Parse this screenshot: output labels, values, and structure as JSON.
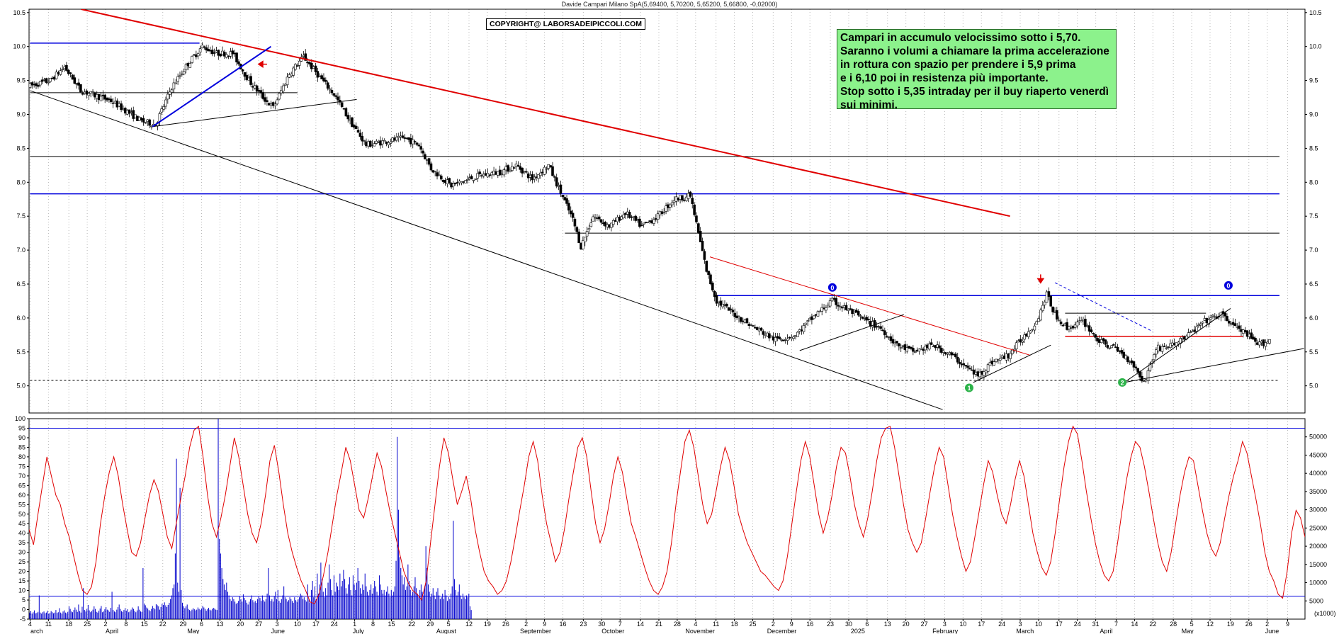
{
  "header": {
    "title": "Davide Campari Milano SpA(5,69400, 5,70200, 5,65200, 5,66800, -0,02000)"
  },
  "copyright": "COPYRIGHT@ LABORSADEIPICCOLI.COM",
  "annotation": {
    "lines": [
      "Campari in accumulo velocissimo sotto i 5,70.",
      "Saranno i volumi a chiamare la prima accelerazione",
      "in rottura con spazio per prendere i 5,9 prima",
      "e i 6,10 poi in resistenza più importante.",
      "Stop sotto i 5,35 intraday per il buy riaperto venerdì",
      "sui minimi."
    ]
  },
  "colors": {
    "candle": "#000000",
    "trend_red": "#e00000",
    "blue": "#0000dd",
    "oscillator": "#e00000",
    "volume": "#0000cc",
    "grid": "#b8b8b8",
    "annotation_bg": "#8cf28c",
    "marker_green": "#2db34a"
  },
  "chart_data": [
    {
      "type": "candlestick",
      "title": "Davide Campari Milano SpA(5,69400, 5,70200, 5,65200, 5,66800, -0,02000)",
      "ylim": [
        4.6,
        10.55
      ],
      "y_ticks": [
        "10.5",
        "10.0",
        "9.5",
        "9.0",
        "8.5",
        "8.0",
        "7.5",
        "7.0",
        "6.5",
        "6.0",
        "5.5",
        "5.0"
      ],
      "grid": true,
      "price_path": [
        [
          0,
          9.42
        ],
        [
          10,
          9.5
        ],
        [
          17,
          9.7
        ],
        [
          25,
          9.35
        ],
        [
          40,
          9.2
        ],
        [
          55,
          8.9
        ],
        [
          62,
          8.85
        ],
        [
          70,
          9.4
        ],
        [
          78,
          9.75
        ],
        [
          85,
          10.0
        ],
        [
          92,
          9.9
        ],
        [
          100,
          9.9
        ],
        [
          108,
          9.5
        ],
        [
          115,
          9.25
        ],
        [
          120,
          9.1
        ],
        [
          128,
          9.6
        ],
        [
          135,
          9.85
        ],
        [
          143,
          9.55
        ],
        [
          150,
          9.3
        ],
        [
          158,
          8.9
        ],
        [
          166,
          8.55
        ],
        [
          175,
          8.6
        ],
        [
          185,
          8.65
        ],
        [
          192,
          8.55
        ],
        [
          198,
          8.2
        ],
        [
          208,
          7.95
        ],
        [
          222,
          8.1
        ],
        [
          232,
          8.15
        ],
        [
          240,
          8.25
        ],
        [
          248,
          8.05
        ],
        [
          256,
          8.25
        ],
        [
          262,
          7.85
        ],
        [
          268,
          7.45
        ],
        [
          272,
          7.05
        ],
        [
          278,
          7.5
        ],
        [
          286,
          7.35
        ],
        [
          294,
          7.55
        ],
        [
          302,
          7.35
        ],
        [
          310,
          7.5
        ],
        [
          318,
          7.75
        ],
        [
          326,
          7.8
        ],
        [
          334,
          6.7
        ],
        [
          339,
          6.25
        ],
        [
          348,
          6.05
        ],
        [
          358,
          5.85
        ],
        [
          368,
          5.68
        ],
        [
          378,
          5.75
        ],
        [
          388,
          6.05
        ],
        [
          396,
          6.25
        ],
        [
          405,
          6.1
        ],
        [
          413,
          5.95
        ],
        [
          420,
          5.85
        ],
        [
          428,
          5.6
        ],
        [
          436,
          5.5
        ],
        [
          446,
          5.6
        ],
        [
          455,
          5.45
        ],
        [
          462,
          5.28
        ],
        [
          468,
          5.15
        ],
        [
          475,
          5.35
        ],
        [
          483,
          5.45
        ],
        [
          490,
          5.7
        ],
        [
          497,
          5.95
        ],
        [
          502,
          6.35
        ],
        [
          506,
          6.05
        ],
        [
          512,
          5.85
        ],
        [
          520,
          5.95
        ],
        [
          528,
          5.65
        ],
        [
          536,
          5.55
        ],
        [
          544,
          5.35
        ],
        [
          550,
          5.05
        ],
        [
          556,
          5.55
        ],
        [
          564,
          5.6
        ],
        [
          572,
          5.75
        ],
        [
          580,
          5.95
        ],
        [
          588,
          6.05
        ],
        [
          594,
          5.9
        ],
        [
          602,
          5.72
        ],
        [
          606,
          5.6
        ],
        [
          612,
          5.67
        ]
      ],
      "horizontal_lines": [
        {
          "y": 10.05,
          "x_from": 0,
          "x_to": 83,
          "color": "blue"
        },
        {
          "y": 9.32,
          "x_from": 0,
          "x_to": 131,
          "color": "black"
        },
        {
          "y": 8.38,
          "x_from": 0,
          "x_to": 612,
          "color": "black"
        },
        {
          "y": 7.83,
          "x_from": 0,
          "x_to": 612,
          "color": "blue"
        },
        {
          "y": 7.25,
          "x_from": 262,
          "x_to": 612,
          "color": "black"
        },
        {
          "y": 6.33,
          "x_from": 336,
          "x_to": 612,
          "color": "blue"
        },
        {
          "y": 6.07,
          "x_from": 507,
          "x_to": 576,
          "color": "black"
        },
        {
          "y": 5.73,
          "x_from": 507,
          "x_to": 594,
          "color": "red"
        },
        {
          "y": 5.08,
          "x_from": 0,
          "x_to": 612,
          "color": "black",
          "dashed": true
        }
      ],
      "trend_lines": [
        {
          "from": [
            25,
            10.55
          ],
          "to": [
            480,
            7.5
          ],
          "color": "red",
          "width": 2
        },
        {
          "from": [
            0,
            9.35
          ],
          "to": [
            447,
            4.65
          ],
          "color": "black"
        },
        {
          "from": [
            60,
            8.82
          ],
          "to": [
            160,
            9.22
          ],
          "color": "black"
        },
        {
          "from": [
            60,
            8.82
          ],
          "to": [
            118,
            10.0
          ],
          "color": "blue",
          "width": 2
        },
        {
          "from": [
            333,
            6.9
          ],
          "to": [
            490,
            5.45
          ],
          "color": "red"
        },
        {
          "from": [
            377,
            5.52
          ],
          "to": [
            428,
            6.05
          ],
          "color": "black"
        },
        {
          "from": [
            462,
            5.05
          ],
          "to": [
            500,
            5.6
          ],
          "color": "black"
        },
        {
          "from": [
            536,
            5.05
          ],
          "to": [
            588,
            6.14
          ],
          "color": "black"
        },
        {
          "from": [
            536,
            5.05
          ],
          "to": [
            624,
            5.55
          ],
          "color": "black"
        },
        {
          "from": [
            502,
            6.52
          ],
          "to": [
            550,
            5.8
          ],
          "color": "blue",
          "dashed": true
        }
      ],
      "markers": [
        {
          "label": "1",
          "x": 460,
          "y": 4.97,
          "color": "green"
        },
        {
          "label": "2",
          "x": 535,
          "y": 5.05,
          "color": "green"
        },
        {
          "label": "0",
          "x": 393,
          "y": 6.45,
          "color": "blue"
        },
        {
          "label": "0",
          "x": 587,
          "y": 6.48,
          "color": "blue"
        }
      ],
      "arrows": [
        {
          "x": 114,
          "y": 9.74,
          "direction": "left",
          "color": "red"
        },
        {
          "x": 495,
          "y": 6.58,
          "direction": "down",
          "color": "red"
        }
      ]
    },
    {
      "type": "line",
      "name": "oscillator",
      "ylim": [
        -5,
        100
      ],
      "y_ticks": [
        "100",
        "95",
        "90",
        "85",
        "80",
        "75",
        "70",
        "65",
        "60",
        "55",
        "50",
        "45",
        "40",
        "35",
        "30",
        "25",
        "20",
        "15",
        "10",
        "5",
        "0",
        "-5"
      ],
      "reference_lines": [
        95,
        7
      ],
      "values": [
        42,
        34,
        50,
        65,
        80,
        70,
        60,
        55,
        45,
        38,
        28,
        18,
        10,
        8,
        12,
        25,
        45,
        60,
        72,
        80,
        70,
        55,
        42,
        30,
        28,
        35,
        48,
        60,
        68,
        62,
        50,
        38,
        32,
        45,
        58,
        70,
        85,
        94,
        96,
        80,
        60,
        45,
        38,
        48,
        60,
        75,
        90,
        80,
        65,
        50,
        40,
        35,
        45,
        60,
        78,
        86,
        72,
        55,
        40,
        30,
        22,
        15,
        10,
        4,
        3,
        8,
        18,
        30,
        45,
        60,
        72,
        85,
        78,
        65,
        52,
        48,
        58,
        70,
        82,
        75,
        62,
        50,
        40,
        30,
        20,
        14,
        10,
        8,
        5,
        15,
        35,
        55,
        75,
        90,
        82,
        68,
        55,
        62,
        70,
        58,
        42,
        30,
        20,
        15,
        12,
        8,
        10,
        15,
        25,
        38,
        52,
        65,
        80,
        88,
        78,
        60,
        45,
        35,
        25,
        30,
        42,
        58,
        72,
        85,
        90,
        80,
        62,
        45,
        35,
        42,
        55,
        70,
        80,
        72,
        58,
        45,
        38,
        30,
        22,
        15,
        10,
        8,
        12,
        20,
        35,
        55,
        72,
        88,
        94,
        85,
        70,
        55,
        45,
        50,
        62,
        75,
        85,
        78,
        65,
        50,
        42,
        35,
        30,
        25,
        20,
        18,
        15,
        12,
        10,
        15,
        28,
        45,
        62,
        78,
        88,
        80,
        65,
        50,
        40,
        48,
        60,
        75,
        85,
        82,
        70,
        55,
        45,
        38,
        48,
        62,
        78,
        90,
        95,
        96,
        85,
        70,
        55,
        42,
        35,
        30,
        35,
        48,
        62,
        75,
        85,
        80,
        65,
        50,
        38,
        28,
        20,
        25,
        38,
        52,
        66,
        78,
        72,
        60,
        50,
        45,
        55,
        68,
        78,
        70,
        55,
        40,
        30,
        22,
        18,
        25,
        40,
        58,
        75,
        88,
        96,
        92,
        78,
        62,
        48,
        35,
        25,
        18,
        15,
        20,
        35,
        52,
        68,
        80,
        88,
        85,
        75,
        62,
        48,
        35,
        25,
        20,
        30,
        45,
        60,
        72,
        80,
        78,
        65,
        52,
        40,
        32,
        28,
        35,
        48,
        60,
        70,
        78,
        88,
        82,
        70,
        58,
        45,
        30,
        20,
        15,
        8,
        6,
        20,
        40,
        52,
        48,
        38
      ]
    },
    {
      "type": "bar",
      "name": "volume",
      "ylim": [
        0,
        55000
      ],
      "y_ticks": [
        "50000",
        "45000",
        "40000",
        "35000",
        "30000",
        "25000",
        "20000",
        "15000",
        "10000",
        "5000"
      ],
      "reference_line": 6500,
      "values": [
        1800,
        2200,
        1500,
        1900,
        2400,
        1600,
        1700,
        2000,
        6500,
        1800,
        1500,
        1900,
        2100,
        1600,
        1800,
        2300,
        1500,
        1700,
        2200,
        1900,
        1600,
        1800,
        2500,
        1700,
        1900,
        3000,
        1800,
        1500,
        2100,
        2400,
        1800,
        1600,
        2000,
        3500,
        2800,
        2100,
        1900,
        2500,
        3200,
        2600,
        2000,
        4000,
        2200,
        1800,
        3400,
        8500,
        2500,
        2100,
        2800,
        3900,
        2400,
        1900,
        2200,
        2600,
        3500,
        2800,
        2000,
        1800,
        2300,
        2900,
        3600,
        1900,
        2100,
        2700,
        3300,
        2600,
        2400,
        2000,
        3100,
        7500,
        2500,
        2100,
        1900,
        2600,
        3300,
        4000,
        2800,
        2200,
        2000,
        2500,
        3000,
        2300,
        2700,
        1900,
        2100,
        2600,
        3200,
        2800,
        2300,
        1900,
        2400,
        3500,
        2600,
        2100,
        2000,
        14000,
        4200,
        3800,
        3200,
        2900,
        2500,
        2200,
        2800,
        3600,
        3100,
        2700,
        4100,
        3800,
        3500,
        2600,
        3300,
        4200,
        3900,
        4600,
        3800,
        3300,
        3900,
        4500,
        5500,
        6500,
        8500,
        9500,
        18000,
        44000,
        10000,
        7500,
        36000,
        8000,
        4500,
        3500,
        3000,
        3500,
        4000,
        2800,
        2500,
        2200,
        2600,
        3000,
        2700,
        2400,
        2600,
        3200,
        2800,
        2500,
        2900,
        3600,
        3200,
        2800,
        2300,
        2700,
        3100,
        2600,
        2400,
        2800,
        3100,
        2900,
        2600,
        2500,
        55000,
        22000,
        18000,
        14000,
        11000,
        9500,
        8000,
        10000,
        7500,
        6500,
        5500,
        5000,
        6000,
        5500,
        4800,
        4200,
        4500,
        5000,
        6200,
        5500,
        4800,
        6800,
        5800,
        5200,
        4500,
        4000,
        4800,
        5500,
        6500,
        5200,
        4600,
        5000,
        4500,
        5500,
        6200,
        5800,
        5000,
        6500,
        5200,
        4800,
        5500,
        7000,
        14000,
        6500,
        5000,
        5500,
        4800,
        6200,
        7500,
        5500,
        8000,
        5000,
        4500,
        5500,
        6500,
        9000,
        6000,
        5500,
        4800,
        5200,
        6000,
        5500,
        5000,
        4500,
        6000,
        5200,
        4800,
        5500,
        6000,
        7000,
        6500,
        5500,
        6000,
        5200,
        4800,
        9500,
        5500,
        4500,
        8000,
        10500,
        6000,
        9000,
        5500,
        12500,
        7000,
        9500,
        15500,
        11000,
        7500,
        6000,
        8500,
        6500,
        10000,
        15000,
        11000,
        8000,
        6500,
        12000,
        7500,
        10000,
        9000,
        8000,
        12500,
        9000,
        10500,
        13500,
        11000,
        8500,
        7000,
        9500,
        11500,
        8000,
        6500,
        12000,
        9500,
        8000,
        10000,
        14000,
        10500,
        8500,
        7000,
        9500,
        8000,
        12500,
        9000,
        7500,
        6500,
        8000,
        9500,
        7000,
        8500,
        10500,
        9000,
        7500,
        6500,
        12000,
        9500,
        8000,
        7000,
        8000,
        6500,
        7500,
        9000,
        7000,
        6000,
        8000,
        6500,
        7500,
        9000,
        16000,
        50000,
        30000,
        17000,
        14000,
        12000,
        9500,
        11500,
        8000,
        9000,
        15000,
        10500,
        8000,
        6500,
        7500,
        9000,
        11500,
        8500,
        7000,
        6000,
        8000,
        9500,
        7500,
        6500,
        9000,
        20000,
        14000,
        9500,
        7500,
        6000,
        7000,
        8500,
        6500,
        5500,
        7500,
        8500,
        6500,
        5500,
        6000,
        7000,
        5500,
        8000,
        6500,
        5000,
        6000,
        5500,
        7000,
        9000,
        27000,
        11000,
        8000,
        6500,
        7500,
        9500,
        6500,
        5500,
        7000,
        6000,
        5500,
        6500,
        6000,
        7000,
        3500,
        2500
      ]
    }
  ],
  "x_axis": {
    "upper_labels": [
      "4",
      "11",
      "18",
      "25",
      "2",
      "8",
      "15",
      "22",
      "29",
      "6",
      "13",
      "20",
      "27",
      "3",
      "10",
      "17",
      "24",
      "1",
      "8",
      "15",
      "22",
      "29",
      "5",
      "12",
      "19",
      "26",
      "2",
      "9",
      "16",
      "23",
      "30",
      "7",
      "14",
      "21",
      "28",
      "4",
      "11",
      "18",
      "25",
      "2",
      "9",
      "16",
      "23",
      "30",
      "6",
      "13",
      "20",
      "27",
      "3",
      "10",
      "17",
      "24",
      "3",
      "10",
      "17",
      "24",
      "31",
      "7",
      "14",
      "22",
      "28",
      "5",
      "12",
      "19",
      "26",
      "2",
      "9"
    ],
    "month_labels": [
      "arch",
      "April",
      "May",
      "June",
      "July",
      "August",
      "September",
      "October",
      "November",
      "December",
      "2025",
      "February",
      "March",
      "April",
      "May",
      "June"
    ],
    "volume_unit_label": "(x1000)"
  }
}
